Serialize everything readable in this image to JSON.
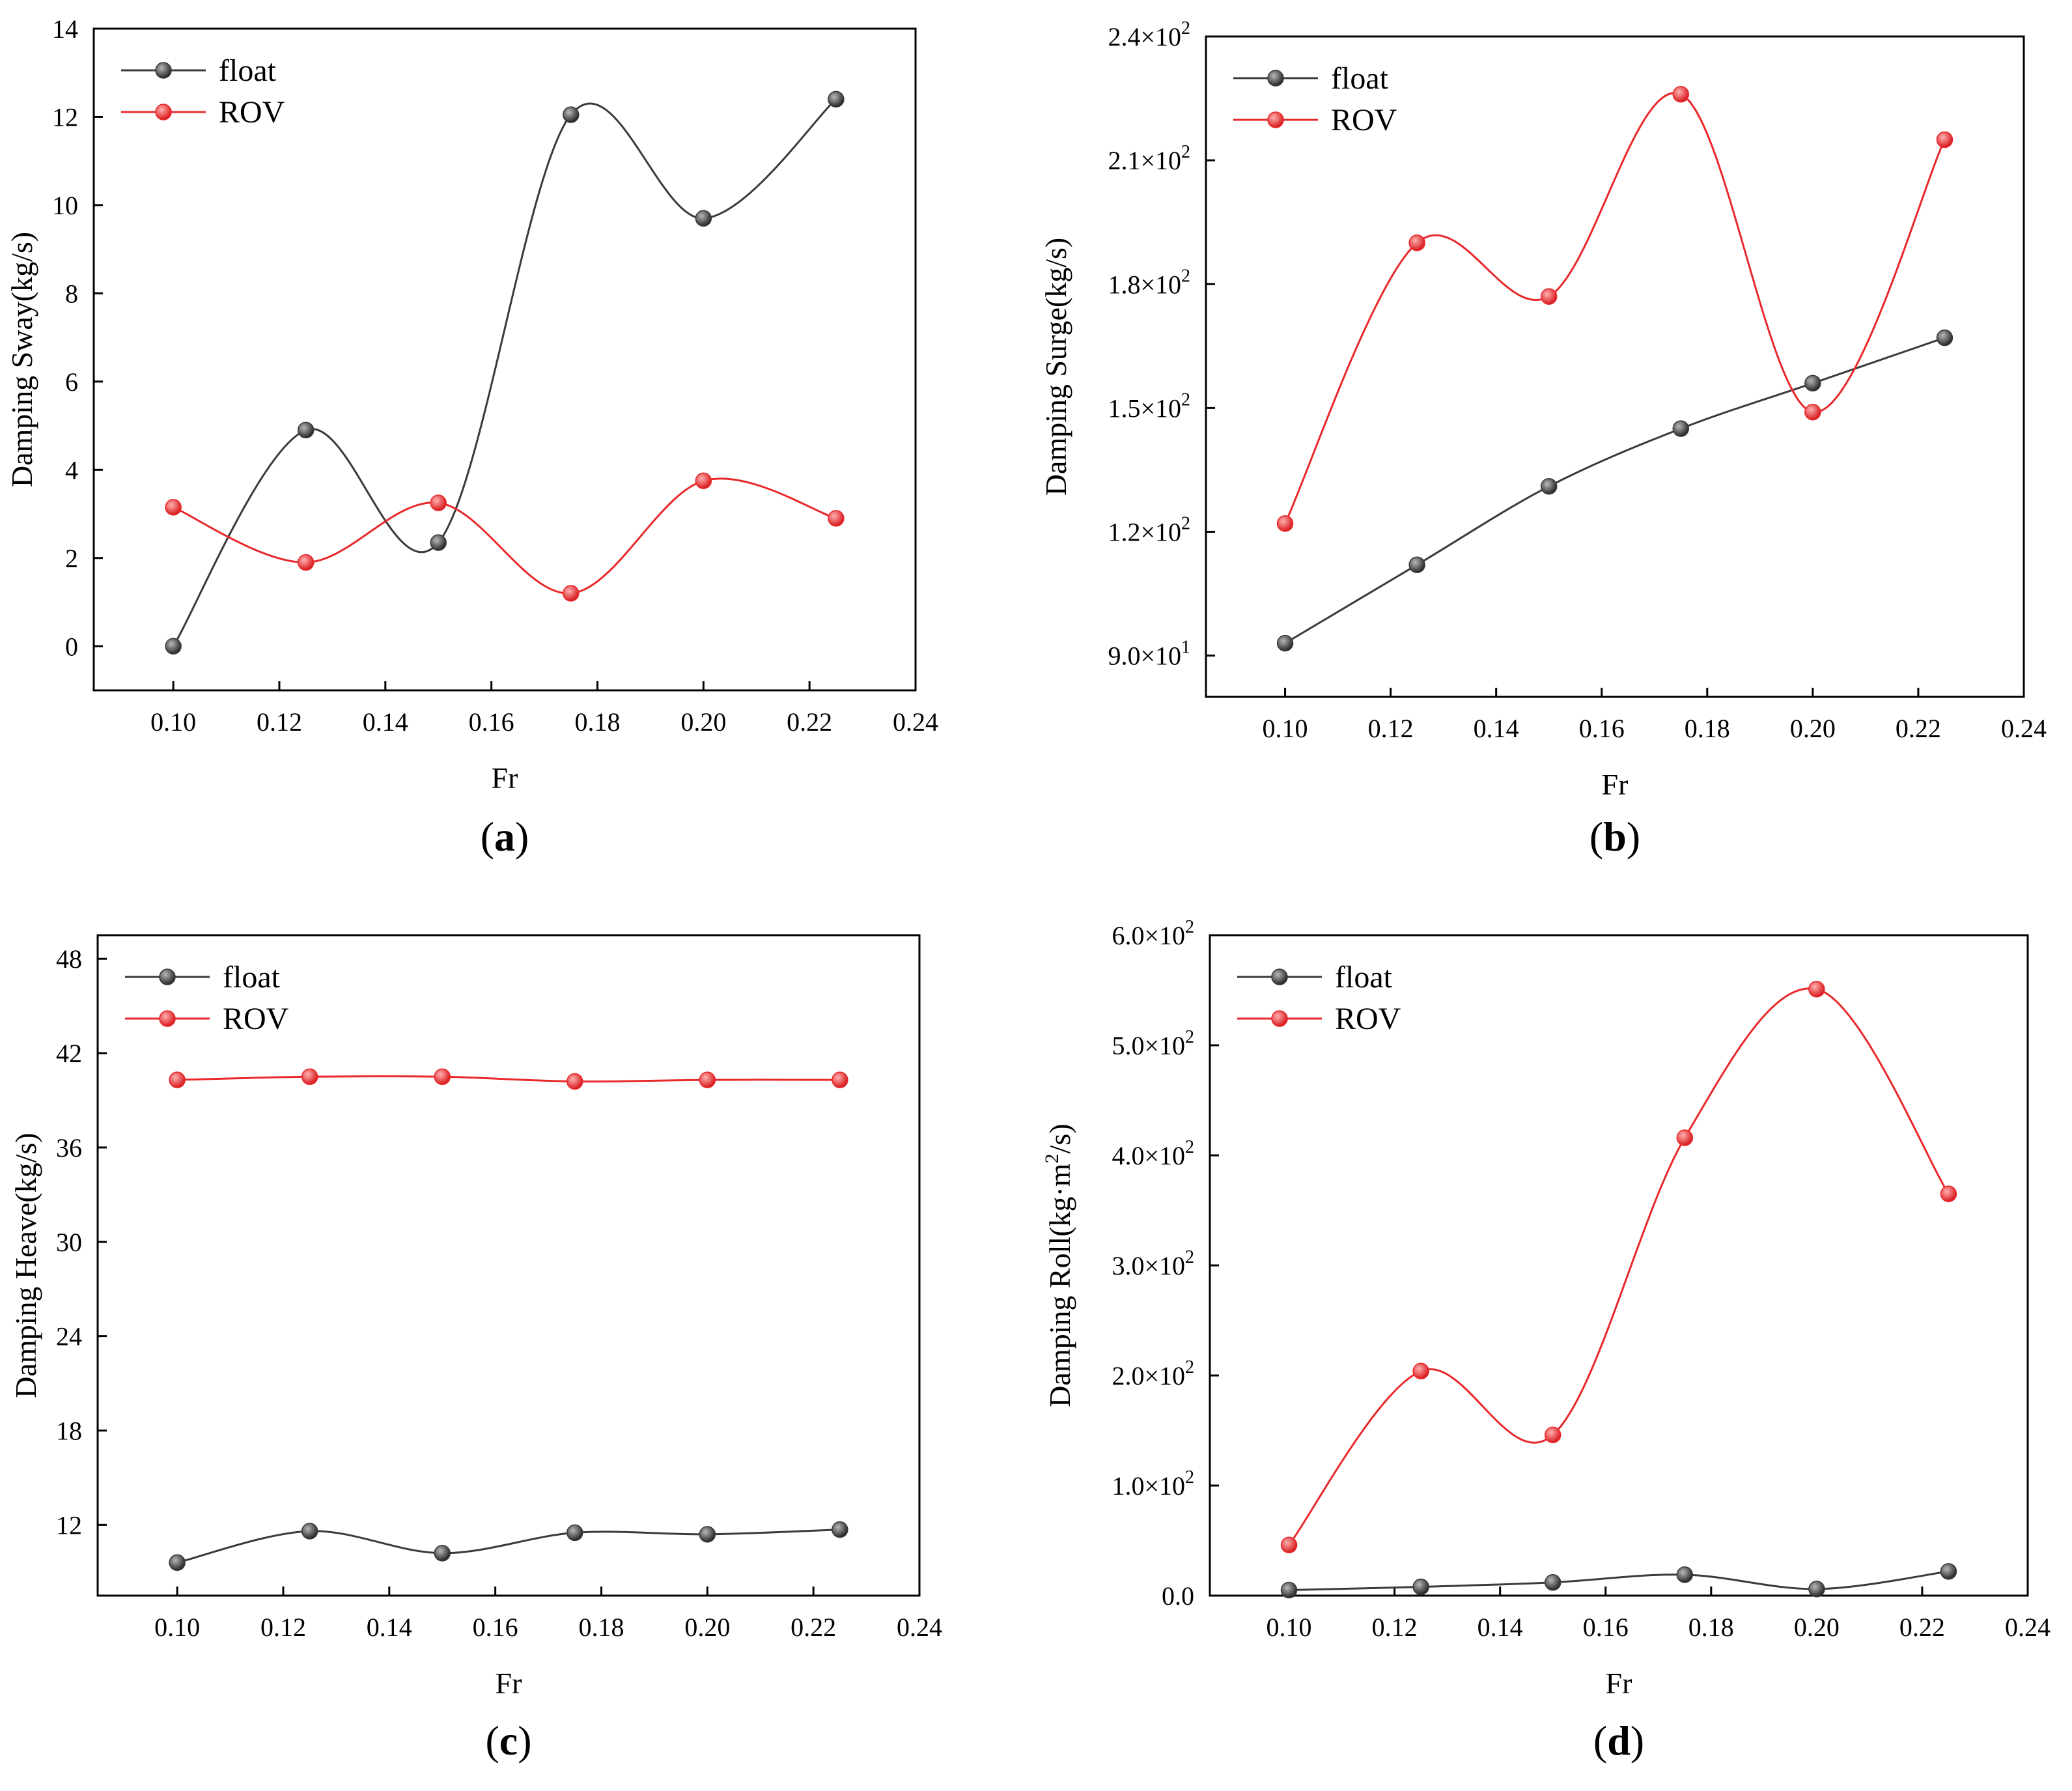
{
  "chart_data": [
    {
      "type": "line",
      "panel_label": "a",
      "xlabel": "Fr",
      "ylabel": "Damping Sway(kg/s)",
      "xlim": [
        0.085,
        0.24
      ],
      "ylim": [
        -1,
        14
      ],
      "xticks": [
        "0.10",
        "0.12",
        "0.14",
        "0.16",
        "0.18",
        "0.20",
        "0.22",
        "0.24"
      ],
      "yticks": [
        "0",
        "2",
        "4",
        "6",
        "8",
        "10",
        "12",
        "14"
      ],
      "legend_position": "top-left",
      "x": [
        0.1,
        0.125,
        0.15,
        0.175,
        0.2,
        0.225
      ],
      "series": [
        {
          "name": "float",
          "color": "#3a3a3a",
          "values": [
            0.0,
            4.9,
            2.35,
            12.05,
            9.7,
            12.4
          ]
        },
        {
          "name": "ROV",
          "color": "#e8282b",
          "values": [
            3.15,
            1.9,
            3.25,
            1.2,
            3.75,
            2.9
          ]
        }
      ]
    },
    {
      "type": "line",
      "panel_label": "b",
      "xlabel": "Fr",
      "ylabel": "Damping Surge(kg/s)",
      "xlim": [
        0.085,
        0.24
      ],
      "ylim": [
        80,
        240
      ],
      "xticks": [
        "0.10",
        "0.12",
        "0.14",
        "0.16",
        "0.18",
        "0.20",
        "0.22",
        "0.24"
      ],
      "yticks": [
        {
          "value": 90,
          "mantissa": "9.0",
          "times": "×10",
          "exp": "1"
        },
        {
          "value": 120,
          "mantissa": "1.2",
          "times": "×10",
          "exp": "2"
        },
        {
          "value": 150,
          "mantissa": "1.5",
          "times": "×10",
          "exp": "2"
        },
        {
          "value": 180,
          "mantissa": "1.8",
          "times": "×10",
          "exp": "2"
        },
        {
          "value": 210,
          "mantissa": "2.1",
          "times": "×10",
          "exp": "2"
        },
        {
          "value": 240,
          "mantissa": "2.4",
          "times": "×10",
          "exp": "2"
        }
      ],
      "legend_position": "top-left",
      "x": [
        0.1,
        0.125,
        0.15,
        0.175,
        0.2,
        0.225
      ],
      "series": [
        {
          "name": "float",
          "color": "#3a3a3a",
          "values": [
            93,
            112,
            131,
            145,
            156,
            167
          ]
        },
        {
          "name": "ROV",
          "color": "#e8282b",
          "values": [
            122,
            190,
            177,
            226,
            149,
            215
          ]
        }
      ]
    },
    {
      "type": "line",
      "panel_label": "c",
      "xlabel": "Fr",
      "ylabel": "Damping Heave(kg/s)",
      "xlim": [
        0.085,
        0.24
      ],
      "ylim": [
        7.5,
        49.5
      ],
      "xticks": [
        "0.10",
        "0.12",
        "0.14",
        "0.16",
        "0.18",
        "0.20",
        "0.22",
        "0.24"
      ],
      "yticks": [
        "12",
        "18",
        "24",
        "30",
        "36",
        "42",
        "48"
      ],
      "legend_position": "top-left",
      "x": [
        0.1,
        0.125,
        0.15,
        0.175,
        0.2,
        0.225
      ],
      "series": [
        {
          "name": "float",
          "color": "#3a3a3a",
          "values": [
            9.6,
            11.6,
            10.2,
            11.5,
            11.4,
            11.7
          ]
        },
        {
          "name": "ROV",
          "color": "#e8282b",
          "values": [
            40.3,
            40.5,
            40.5,
            40.2,
            40.3,
            40.3
          ]
        }
      ]
    },
    {
      "type": "line",
      "panel_label": "d",
      "xlabel": "Fr",
      "ylabel_main": "Damping Roll(kg·m",
      "ylabel_sup": "2",
      "ylabel_tail": "/s)",
      "xlim": [
        0.085,
        0.24
      ],
      "ylim": [
        0,
        600
      ],
      "xticks": [
        "0.10",
        "0.12",
        "0.14",
        "0.16",
        "0.18",
        "0.20",
        "0.22",
        "0.24"
      ],
      "yticks": [
        {
          "value": 0,
          "mantissa": "0.0",
          "times": "",
          "exp": ""
        },
        {
          "value": 100,
          "mantissa": "1.0",
          "times": "×10",
          "exp": "2"
        },
        {
          "value": 200,
          "mantissa": "2.0",
          "times": "×10",
          "exp": "2"
        },
        {
          "value": 300,
          "mantissa": "3.0",
          "times": "×10",
          "exp": "2"
        },
        {
          "value": 400,
          "mantissa": "4.0",
          "times": "×10",
          "exp": "2"
        },
        {
          "value": 500,
          "mantissa": "5.0",
          "times": "×10",
          "exp": "2"
        },
        {
          "value": 600,
          "mantissa": "6.0",
          "times": "×10",
          "exp": "2"
        }
      ],
      "legend_position": "top-left",
      "x": [
        0.1,
        0.125,
        0.15,
        0.175,
        0.2,
        0.225
      ],
      "series": [
        {
          "name": "float",
          "color": "#3a3a3a",
          "values": [
            5,
            8,
            12,
            19,
            6,
            22
          ]
        },
        {
          "name": "ROV",
          "color": "#e8282b",
          "values": [
            46,
            204,
            146,
            416,
            551,
            365
          ]
        }
      ]
    }
  ]
}
